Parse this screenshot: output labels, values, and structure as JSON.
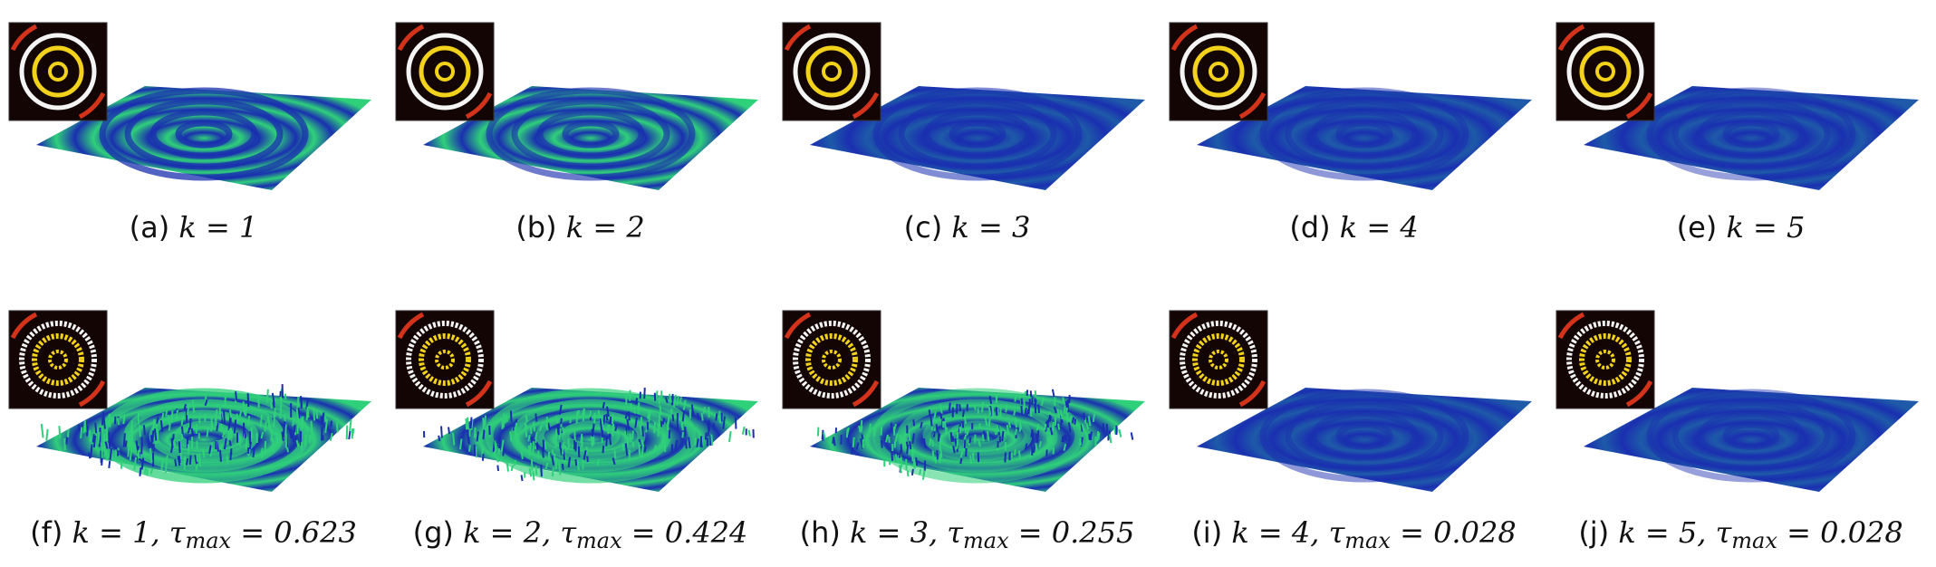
{
  "figure": {
    "colors": {
      "surface_dark": "#1a2fb0",
      "surface_green": "#2fd07a",
      "surface_mid": "#1e5aa8",
      "inset_bg": "#140505",
      "ring_yellow": "#f2d21b",
      "ring_white": "#f4f4f4",
      "ring_red": "#d2331a"
    },
    "panels": [
      {
        "row": 1,
        "label": "(a)",
        "k": "k = 1",
        "tau": null,
        "style": "smooth",
        "wave": 1.0
      },
      {
        "row": 1,
        "label": "(b)",
        "k": "k = 2",
        "tau": null,
        "style": "smooth",
        "wave": 0.7
      },
      {
        "row": 1,
        "label": "(c)",
        "k": "k = 3",
        "tau": null,
        "style": "smooth",
        "wave": 0.5
      },
      {
        "row": 1,
        "label": "(d)",
        "k": "k = 4",
        "tau": null,
        "style": "smooth",
        "wave": 0.35
      },
      {
        "row": 1,
        "label": "(e)",
        "k": "k = 5",
        "tau": null,
        "style": "smooth",
        "wave": 0.25
      },
      {
        "row": 2,
        "label": "(f)",
        "k": "k = 1,",
        "tau": "= 0.623",
        "style": "noisy",
        "wave": 1.0
      },
      {
        "row": 2,
        "label": "(g)",
        "k": "k = 2,",
        "tau": "= 0.424",
        "style": "noisy",
        "wave": 0.8
      },
      {
        "row": 2,
        "label": "(h)",
        "k": "k = 3,",
        "tau": "= 0.255",
        "style": "noisy",
        "wave": 0.55
      },
      {
        "row": 2,
        "label": "(i)",
        "k": "k = 4,",
        "tau": "= 0.028",
        "style": "smooth",
        "wave": 0.35
      },
      {
        "row": 2,
        "label": "(j)",
        "k": "k = 5,",
        "tau": "= 0.028",
        "style": "smooth",
        "wave": 0.25
      }
    ],
    "tau_symbol": "τ",
    "tau_subscript": "max"
  }
}
